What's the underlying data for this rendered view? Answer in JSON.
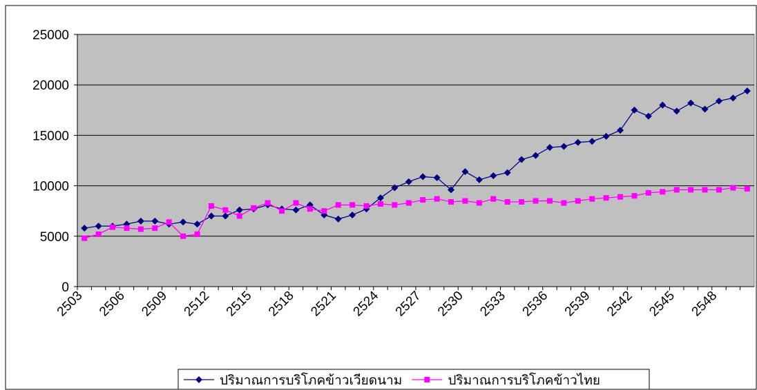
{
  "chart_data": {
    "type": "line",
    "categories": [
      "2503",
      null,
      null,
      "2506",
      null,
      null,
      "2509",
      null,
      null,
      "2512",
      null,
      null,
      "2515",
      null,
      null,
      "2518",
      null,
      null,
      "2521",
      null,
      null,
      "2524",
      null,
      null,
      "2527",
      null,
      null,
      "2530",
      null,
      null,
      "2533",
      null,
      null,
      "2536",
      null,
      null,
      "2539",
      null,
      null,
      "2542",
      null,
      null,
      "2545",
      null,
      null,
      "2548",
      null,
      null
    ],
    "series": [
      {
        "name": "ปริมาณการบริโภคข้าวเวียดนาม",
        "color": "#000080",
        "marker": "diamond",
        "values": [
          5800,
          6000,
          6000,
          6200,
          6500,
          6500,
          6200,
          6400,
          6200,
          7000,
          7000,
          7600,
          7700,
          8100,
          7700,
          7600,
          8100,
          7100,
          6700,
          7100,
          7700,
          8800,
          9800,
          10400,
          10900,
          10800,
          9600,
          11400,
          10600,
          11000,
          11300,
          12600,
          13000,
          13800,
          13900,
          14300,
          14400,
          14900,
          15500,
          17500,
          16900,
          18000,
          17400,
          18200,
          17600,
          18400,
          18700,
          19400
        ]
      },
      {
        "name": "ปริมาณการบริโภคข้าวไทย",
        "color": "#ff00ff",
        "marker": "square",
        "values": [
          4800,
          5200,
          5900,
          5800,
          5700,
          5800,
          6400,
          5000,
          5200,
          8000,
          7600,
          7000,
          7800,
          8300,
          7500,
          8300,
          7700,
          7500,
          8100,
          8100,
          8000,
          8200,
          8100,
          8300,
          8600,
          8700,
          8400,
          8500,
          8300,
          8700,
          8400,
          8400,
          8500,
          8500,
          8300,
          8500,
          8700,
          8800,
          8900,
          9000,
          9300,
          9400,
          9600,
          9600,
          9600,
          9600,
          9800,
          9700
        ]
      }
    ],
    "ylim": [
      0,
      25000
    ],
    "yticks": [
      0,
      5000,
      10000,
      15000,
      20000,
      25000
    ],
    "grid": true,
    "legend": "bottom"
  }
}
